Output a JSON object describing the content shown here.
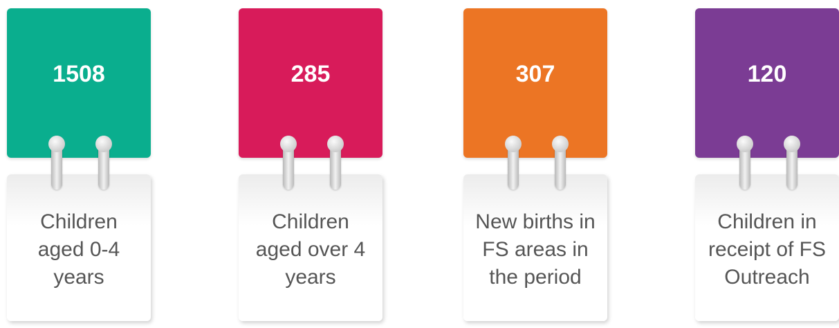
{
  "cards": [
    {
      "value": "1508",
      "label": [
        "Children",
        "aged 0-4",
        "years"
      ],
      "color": "#0aae8e"
    },
    {
      "value": "285",
      "label": [
        "Children",
        "aged over 4",
        "years"
      ],
      "color": "#d81b5a"
    },
    {
      "value": "307",
      "label": [
        "New births in",
        "FS areas in",
        "the period"
      ],
      "color": "#ec7524"
    },
    {
      "value": "120",
      "label": [
        "Children in",
        "receipt of FS",
        "Outreach"
      ],
      "color": "#7b3c94"
    }
  ]
}
